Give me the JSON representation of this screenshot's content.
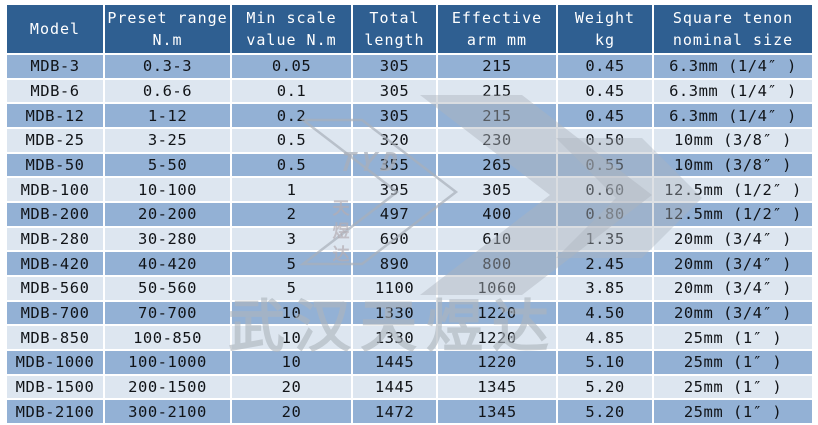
{
  "colors": {
    "header_bg": "#2F5F91",
    "row_odd_bg": "#93B1D5",
    "row_even_bg": "#DDE6F0",
    "grid": "#FFFFFF",
    "header_text": "#FFFFFF",
    "cell_text": "#111418",
    "watermark_gray": "#ADB4BD"
  },
  "table": {
    "columns": [
      {
        "id": "model",
        "line1": "Model",
        "line2": ""
      },
      {
        "id": "preset-range",
        "line1": "Preset range",
        "line2": "N.m"
      },
      {
        "id": "min-scale",
        "line1": "Min scale",
        "line2": "value N.m"
      },
      {
        "id": "total-length",
        "line1": "Total",
        "line2": "length"
      },
      {
        "id": "effective-arm",
        "line1": "Effective",
        "line2": "arm mm"
      },
      {
        "id": "weight",
        "line1": "Weight",
        "line2": "kg"
      },
      {
        "id": "square-tenon",
        "line1": "Square tenon",
        "line2": "nominal size"
      }
    ],
    "rows": [
      [
        "MDB-3",
        "0.3-3",
        "0.05",
        "305",
        "215",
        "0.45",
        "6.3mm (1/4″ )"
      ],
      [
        "MDB-6",
        "0.6-6",
        "0.1",
        "305",
        "215",
        "0.45",
        "6.3mm (1/4″ )"
      ],
      [
        "MDB-12",
        "1-12",
        "0.2",
        "305",
        "215",
        "0.45",
        "6.3mm (1/4″ )"
      ],
      [
        "MDB-25",
        "3-25",
        "0.5",
        "320",
        "230",
        "0.50",
        "10mm (3/8″ )"
      ],
      [
        "MDB-50",
        "5-50",
        "0.5",
        "355",
        "265",
        "0.55",
        "10mm (3/8″ )"
      ],
      [
        "MDB-100",
        "10-100",
        "1",
        "395",
        "305",
        "0.60",
        "12.5mm (1/2″ )"
      ],
      [
        "MDB-200",
        "20-200",
        "2",
        "497",
        "400",
        "0.80",
        "12.5mm (1/2″ )"
      ],
      [
        "MDB-280",
        "30-280",
        "3",
        "690",
        "610",
        "1.35",
        "20mm (3/4″ )"
      ],
      [
        "MDB-420",
        "40-420",
        "5",
        "890",
        "800",
        "2.45",
        "20mm (3/4″ )"
      ],
      [
        "MDB-560",
        "50-560",
        "5",
        "1100",
        "1060",
        "3.85",
        "20mm (3/4″ )"
      ],
      [
        "MDB-700",
        "70-700",
        "10",
        "1330",
        "1220",
        "4.50",
        "20mm (3/4″ )"
      ],
      [
        "MDB-850",
        "100-850",
        "10",
        "1330",
        "1220",
        "4.85",
        "25mm (1″ )"
      ],
      [
        "MDB-1000",
        "100-1000",
        "10",
        "1445",
        "1220",
        "5.10",
        "25mm (1″ )"
      ],
      [
        "MDB-1500",
        "200-1500",
        "20",
        "1445",
        "1345",
        "5.20",
        "25mm (1″ )"
      ],
      [
        "MDB-2100",
        "300-2100",
        "20",
        "1472",
        "1345",
        "5.20",
        "25mm (1″ )"
      ]
    ]
  },
  "watermark": {
    "logo_text": "TYD",
    "logo_vertical_text": "天煜达",
    "company_text": "武汉天煜达"
  }
}
